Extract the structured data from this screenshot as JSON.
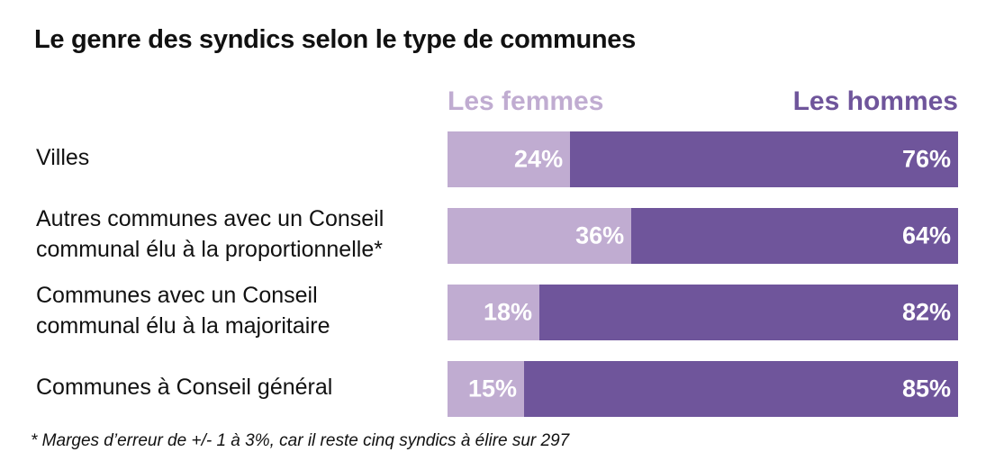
{
  "chart_data": {
    "type": "bar",
    "orientation": "horizontal",
    "stacked": true,
    "title": "Le genre des syndics selon le type de communes",
    "categories": [
      [
        "Villes"
      ],
      [
        "Autres communes avec un Conseil",
        "communal élu à la proportionnelle*"
      ],
      [
        "Communes avec un Conseil",
        "communal élu à la majoritaire"
      ],
      [
        "Communes à Conseil général"
      ]
    ],
    "series": [
      {
        "name": "Les femmes",
        "color": "#c0acd1",
        "values": [
          24,
          36,
          18,
          15
        ],
        "labels": [
          "24%",
          "36%",
          "18%",
          "15%"
        ]
      },
      {
        "name": "Les hommes",
        "color": "#6f559b",
        "values": [
          76,
          64,
          82,
          85
        ],
        "labels": [
          "76%",
          "64%",
          "82%",
          "85%"
        ]
      }
    ],
    "xlim": [
      0,
      100
    ],
    "unit": "%",
    "legend_position": "top",
    "note": "* Marges d’erreur de +/- 1 à 3%, car il reste cinq syndics à élire sur 297"
  }
}
